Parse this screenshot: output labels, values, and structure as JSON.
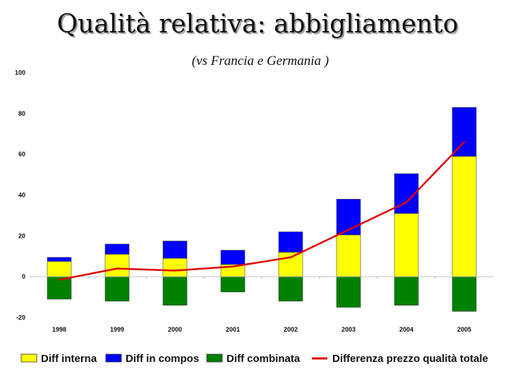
{
  "chart_data": {
    "type": "bar",
    "title": "Qualità relativa: abbigliamento",
    "subtitle": "(vs Francia e Germania )",
    "categories": [
      "1998",
      "1999",
      "2000",
      "2001",
      "2002",
      "2003",
      "2004",
      "2005"
    ],
    "series": [
      {
        "name": "Diff interna",
        "kind": "bar",
        "color": "#ffff00",
        "values": [
          7.5,
          11,
          9,
          6,
          12,
          20.5,
          31,
          59
        ]
      },
      {
        "name": "Diff in compos",
        "kind": "bar",
        "color": "#0000ff",
        "values": [
          2,
          5,
          8.5,
          7,
          10,
          17.5,
          19.5,
          24
        ]
      },
      {
        "name": "Diff combinata",
        "kind": "bar",
        "color": "#008000",
        "values": [
          -11,
          -12,
          -14,
          -7.5,
          -12,
          -15,
          -14,
          -17
        ]
      },
      {
        "name": "Differenza prezzo qualità totale",
        "kind": "line",
        "color": "#e00000",
        "values": [
          -1.5,
          4,
          3,
          5,
          9.5,
          23,
          36.5,
          66
        ]
      }
    ],
    "yticks": [
      "100",
      "80",
      "60",
      "40",
      "20",
      "0",
      "-20"
    ],
    "ylim": [
      -20,
      100
    ],
    "grid": false,
    "legend_position": "bottom"
  }
}
